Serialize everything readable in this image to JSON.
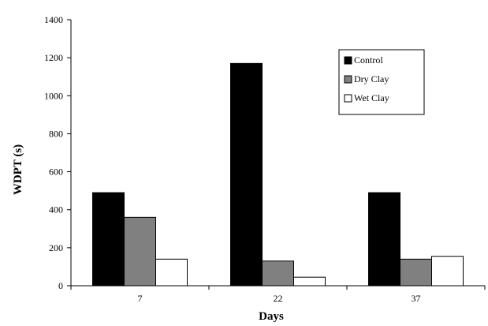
{
  "chart_data": {
    "type": "bar",
    "xlabel": "Days",
    "ylabel": "WDPT (s)",
    "categories": [
      "7",
      "22",
      "37"
    ],
    "ylim": [
      0,
      1400
    ],
    "yticks": [
      0,
      200,
      400,
      600,
      800,
      1000,
      1200,
      1400
    ],
    "series": [
      {
        "name": "Control",
        "color": "#000000",
        "values": [
          490,
          1170,
          490
        ]
      },
      {
        "name": "Dry Clay",
        "color": "#808080",
        "values": [
          360,
          130,
          140
        ]
      },
      {
        "name": "Wet Clay",
        "color": "#ffffff",
        "values": [
          140,
          45,
          155
        ]
      }
    ],
    "legend_position": "top-right",
    "grid": false
  }
}
